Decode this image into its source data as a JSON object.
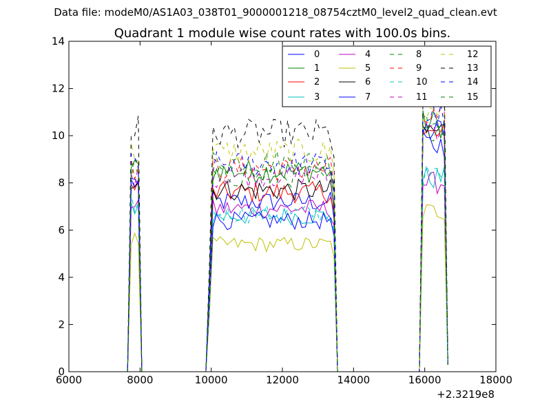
{
  "suptitle": "Data file: modeM0/AS1A03_038T01_9000001218_08754cztM0_level2_quad_clean.evt",
  "chart_data": {
    "type": "line",
    "title": "Quadrant 1 module wise count rates with 100.0s bins.",
    "xlabel": "",
    "ylabel": "",
    "x_offset_label": "+2.3219e8",
    "xlim": [
      6000,
      18000
    ],
    "ylim": [
      0,
      14
    ],
    "x_ticks": [
      6000,
      8000,
      10000,
      12000,
      14000,
      16000,
      18000
    ],
    "y_ticks": [
      0,
      2,
      4,
      6,
      8,
      10,
      12,
      14
    ],
    "grid": false,
    "legend_position": "top-right",
    "legend_columns": 4,
    "segments": [
      {
        "start": 7750,
        "count": 3,
        "step": 100
      },
      {
        "start": 9950,
        "count": 36,
        "step": 100
      },
      {
        "start": 15950,
        "count": 8,
        "step": 100
      }
    ],
    "series": [
      {
        "name": "0",
        "color": "#0000ff",
        "style": "solid",
        "levels": [
          8.0,
          7.2,
          10.2
        ]
      },
      {
        "name": "1",
        "color": "#008000",
        "style": "solid",
        "levels": [
          8.6,
          8.5,
          10.5
        ]
      },
      {
        "name": "2",
        "color": "#ff0000",
        "style": "solid",
        "levels": [
          7.8,
          7.6,
          10.0
        ]
      },
      {
        "name": "3",
        "color": "#00bfbf",
        "style": "solid",
        "levels": [
          7.0,
          6.6,
          8.2
        ]
      },
      {
        "name": "4",
        "color": "#bf00bf",
        "style": "solid",
        "levels": [
          7.2,
          6.9,
          8.0
        ]
      },
      {
        "name": "5",
        "color": "#bfbf00",
        "style": "solid",
        "levels": [
          5.6,
          5.4,
          6.8
        ]
      },
      {
        "name": "6",
        "color": "#000000",
        "style": "solid",
        "levels": [
          8.0,
          7.7,
          10.2
        ]
      },
      {
        "name": "7",
        "color": "#0000ff",
        "style": "solid",
        "levels": [
          8.4,
          6.4,
          9.6
        ]
      },
      {
        "name": "8",
        "color": "#008000",
        "style": "dashed",
        "levels": [
          8.7,
          8.9,
          10.6
        ]
      },
      {
        "name": "9",
        "color": "#ff0000",
        "style": "dashed",
        "levels": [
          8.6,
          8.6,
          10.7
        ]
      },
      {
        "name": "10",
        "color": "#00bfbf",
        "style": "dashed",
        "levels": [
          7.1,
          6.7,
          8.3
        ]
      },
      {
        "name": "11",
        "color": "#bf00bf",
        "style": "dashed",
        "levels": [
          8.3,
          8.3,
          10.4
        ]
      },
      {
        "name": "12",
        "color": "#bfbf00",
        "style": "dashed",
        "levels": [
          9.3,
          9.3,
          11.0
        ]
      },
      {
        "name": "13",
        "color": "#000000",
        "style": "dashed",
        "levels": [
          10.3,
          10.1,
          11.8
        ]
      },
      {
        "name": "14",
        "color": "#0000ff",
        "style": "dashed",
        "levels": [
          8.8,
          8.8,
          10.8
        ]
      },
      {
        "name": "15",
        "color": "#008000",
        "style": "dashed",
        "levels": [
          8.4,
          8.3,
          10.4
        ]
      }
    ]
  }
}
